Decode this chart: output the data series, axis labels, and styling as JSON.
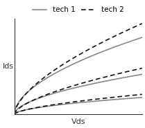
{
  "title": "",
  "xlabel": "Vds",
  "ylabel": "Ids",
  "legend": [
    "tech 1",
    "tech 2"
  ],
  "tech1_color": "#888888",
  "tech2_color": "#111111",
  "tech1_linestyle": "-",
  "tech2_linestyle": "--",
  "linewidth": 1.2,
  "background_color": "#ffffff",
  "axes_color": "#333333",
  "xlabel_fontsize": 8,
  "ylabel_fontsize": 8,
  "legend_fontsize": 7.5,
  "vds_max": 1.0,
  "curves": [
    {
      "k1": 1.0,
      "alpha1": 0.55,
      "k2": 1.18,
      "alpha2": 0.62
    },
    {
      "k1": 0.52,
      "alpha1": 0.55,
      "k2": 0.6,
      "alpha2": 0.62
    },
    {
      "k1": 0.22,
      "alpha1": 0.55,
      "k2": 0.26,
      "alpha2": 0.62
    }
  ]
}
